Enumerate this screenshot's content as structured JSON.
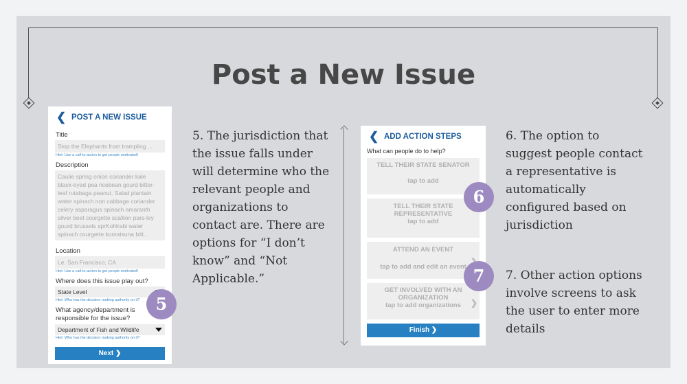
{
  "slide_title": "Post a New Issue",
  "phone1": {
    "back_icon": "chevron-left-icon",
    "header": "POST A NEW ISSUE",
    "title_label": "Title",
    "title_value": "Stop the Elephants from trampling ...",
    "title_hint": "Hint: Use a call-to-action to get people motivated!",
    "description_label": "Description",
    "description_value": "Caulie spring onion coriander kale black-eyed pea ricebean gourd bitter-leaf rutabaga peanut. Salad plantain water spinach non cabbage coriander celery asparagus spinach amaranth silver beet courgette scallion pars-ley gourd brussels sprKohlrabi water spinach courgette komatsuna bitt...",
    "location_label": "Location",
    "location_value": "Le. San Francisco, CA",
    "location_hint": "Hint: Use a call-to-action to get people motivated!",
    "play_out_label": "Where does this issue play out?",
    "play_out_value": "State Level",
    "play_out_hint": "Hint: Who has the decision making authority on it?",
    "agency_label": "What agency/department is responsible for the issue?",
    "agency_value": "Department of Fish and Wildlife",
    "agency_hint": "Hint: Who has the decision making authority on it?",
    "next_button": "Next ❯"
  },
  "note5": "5. The jurisdiction that the issue falls under will determine who the relevant people and organizations to contact are. There are options for “I don’t know” and “Not Applicable.”",
  "badge5": "5",
  "phone2": {
    "back_icon": "chevron-left-icon",
    "header": "ADD ACTION STEPS",
    "question": "What can people do to help?",
    "actions": [
      {
        "title": "TELL THEIR STATE SENATOR",
        "sub": "tap to add"
      },
      {
        "title": "TELL THEIR STATE REPRESENTATIVE",
        "sub": "tap to add"
      },
      {
        "title": "ATTEND AN EVENT",
        "sub": "tap to add and edit an event"
      },
      {
        "title": "GET INVOLVED WITH AN ORGANIZATION",
        "sub": "tap to add organizations"
      }
    ],
    "finish_button": "Finish ❯"
  },
  "badge6": "6",
  "badge7": "7",
  "note6": "6. The option to suggest people contact a representative is automatically configured based on jurisdiction",
  "note7": "7. Other action options involve screens to ask the user to enter more details"
}
